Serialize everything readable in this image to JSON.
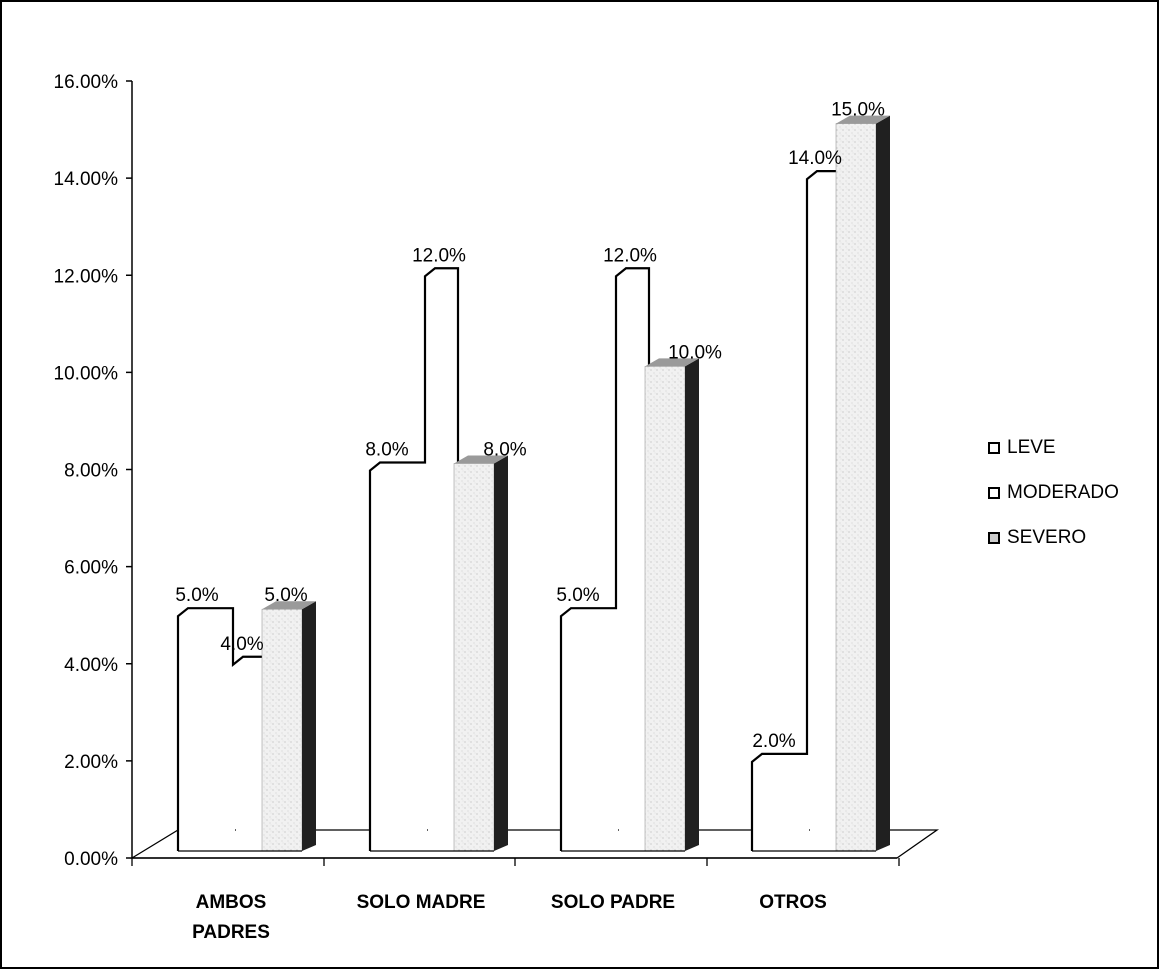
{
  "chart_data": {
    "type": "bar",
    "categories": [
      [
        "AMBOS",
        "PADRES"
      ],
      [
        "SOLO MADRE"
      ],
      [
        "SOLO  PADRE"
      ],
      [
        "OTROS"
      ]
    ],
    "series": [
      {
        "name": "LEVE",
        "values": [
          5.0,
          8.0,
          5.0,
          2.0
        ],
        "labels": [
          "5.0%",
          "8.0%",
          "5.0%",
          "2.0%"
        ],
        "color": "#ffffff"
      },
      {
        "name": "MODERADO",
        "values": [
          4.0,
          12.0,
          12.0,
          14.0
        ],
        "labels": [
          "4.0%",
          "12.0%",
          "12.0%",
          "14.0%"
        ],
        "color": "#ffffff"
      },
      {
        "name": "SEVERO",
        "values": [
          5.0,
          8.0,
          10.0,
          15.0
        ],
        "labels": [
          "5.0%",
          "8.0%",
          "10.0%",
          "15.0%"
        ],
        "color": "#ececec"
      }
    ],
    "yticks": [
      "0.00%",
      "2.00%",
      "4.00%",
      "6.00%",
      "8.00%",
      "10.00%",
      "12.00%",
      "14.00%",
      "16.00%"
    ],
    "ylim": [
      0,
      16
    ],
    "legend_position": "right",
    "style": "3d-column"
  }
}
